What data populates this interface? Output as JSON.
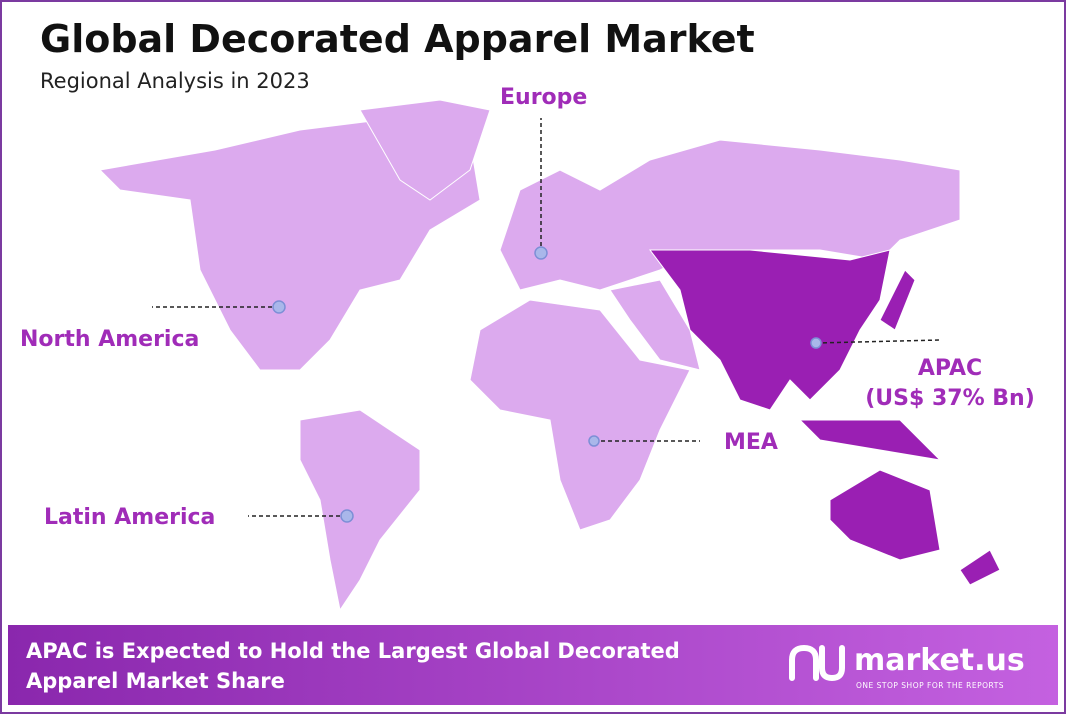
{
  "header": {
    "title": "Global Decorated Apparel Market",
    "subtitle": "Regional Analysis in 2023"
  },
  "regions": {
    "europe": "Europe",
    "north_america": "North America",
    "latin_america": "Latin America",
    "mea": "MEA",
    "apac": "APAC",
    "apac_value": "(US$ 37% Bn)"
  },
  "footer": {
    "text_line1": "APAC is Expected to Hold the Largest Global Decorated",
    "text_line2": "Apparel Market Share",
    "logo": "market.us",
    "tagline": "ONE STOP SHOP FOR THE REPORTS"
  }
}
